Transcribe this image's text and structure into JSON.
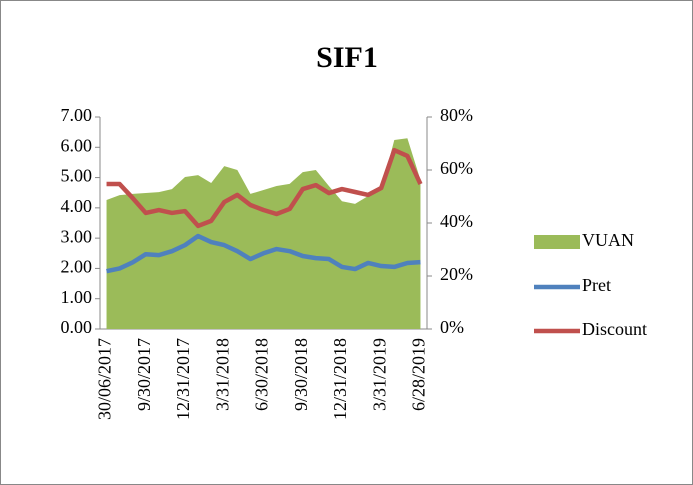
{
  "chart_data": {
    "type": "line",
    "title": "SIF1",
    "categories": [
      "30/06/2017",
      null,
      null,
      "9/30/2017",
      null,
      null,
      "12/31/2017",
      null,
      null,
      "3/31/2018",
      null,
      null,
      "6/30/2018",
      null,
      null,
      "9/30/2018",
      null,
      null,
      "12/31/2018",
      null,
      null,
      "3/31/2019",
      null,
      null,
      "6/28/2019"
    ],
    "series": [
      {
        "name": "VUAN",
        "kind": "area",
        "color": "#9bbb59",
        "values": [
          4.26,
          4.42,
          4.46,
          4.49,
          4.52,
          4.62,
          5.02,
          5.08,
          4.82,
          5.38,
          5.25,
          4.46,
          4.59,
          4.72,
          4.79,
          5.18,
          5.25,
          4.72,
          4.22,
          4.13,
          4.39,
          4.59,
          6.24,
          6.3,
          4.92
        ]
      },
      {
        "name": "Pret",
        "color": "#4f81bd",
        "values": [
          1.91,
          2.0,
          2.2,
          2.47,
          2.44,
          2.57,
          2.77,
          3.07,
          2.87,
          2.77,
          2.57,
          2.31,
          2.5,
          2.64,
          2.57,
          2.41,
          2.34,
          2.31,
          2.05,
          1.98,
          2.18,
          2.08,
          2.05,
          2.18,
          2.21
        ]
      },
      {
        "name": "Discount",
        "color": "#c0504d",
        "axis": "y2",
        "values": [
          54.7,
          54.7,
          49.4,
          43.8,
          44.9,
          43.8,
          44.5,
          38.9,
          40.8,
          47.9,
          50.6,
          46.8,
          44.9,
          43.4,
          45.3,
          52.8,
          54.3,
          51.3,
          52.8,
          51.7,
          50.6,
          53.2,
          67.5,
          65.3,
          54.7
        ]
      }
    ],
    "ylim": [
      0,
      7
    ],
    "yticks": [
      {
        "value": 0,
        "label": "0.00"
      },
      {
        "value": 1,
        "label": "1.00"
      },
      {
        "value": 2,
        "label": "2.00"
      },
      {
        "value": 3,
        "label": "3.00"
      },
      {
        "value": 4,
        "label": "4.00"
      },
      {
        "value": 5,
        "label": "5.00"
      },
      {
        "value": 6,
        "label": "6.00"
      },
      {
        "value": 7,
        "label": "7.00"
      }
    ],
    "y2lim": [
      0,
      80
    ],
    "y2ticks": [
      {
        "value": 0,
        "label": "0%"
      },
      {
        "value": 20,
        "label": "20%"
      },
      {
        "value": 40,
        "label": "40%"
      },
      {
        "value": 60,
        "label": "60%"
      },
      {
        "value": 80,
        "label": "80%"
      }
    ],
    "legend": "right"
  }
}
